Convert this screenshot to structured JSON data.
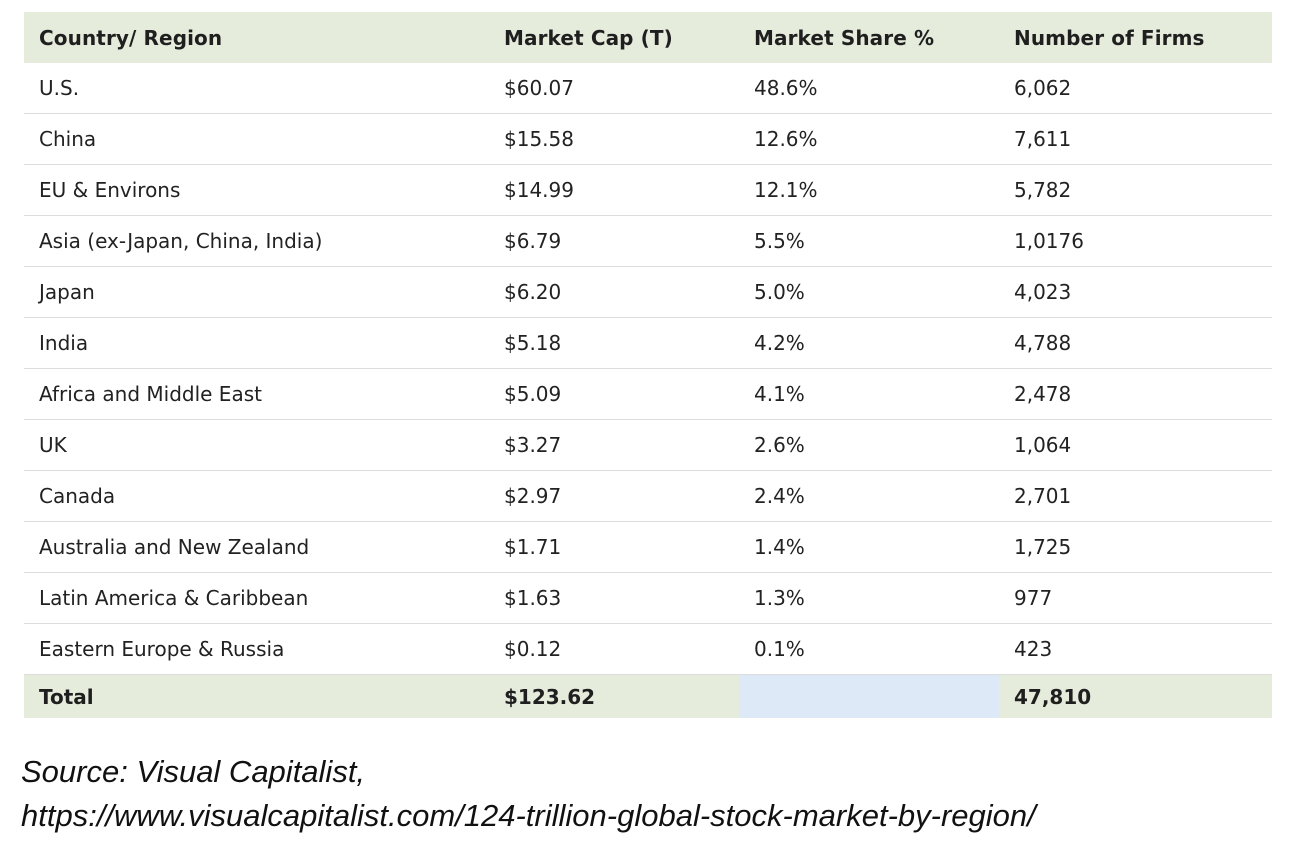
{
  "table": {
    "headers": [
      "Country/ Region",
      "Market Cap (T)",
      "Market Share %",
      "Number of Firms"
    ],
    "rows": [
      [
        "U.S.",
        "$60.07",
        "48.6%",
        "6,062"
      ],
      [
        "China",
        "$15.58",
        "12.6%",
        "7,611"
      ],
      [
        "EU & Environs",
        "$14.99",
        "12.1%",
        "5,782"
      ],
      [
        "Asia (ex-Japan, China, India)",
        "$6.79",
        "5.5%",
        "1,0176"
      ],
      [
        "Japan",
        "$6.20",
        "5.0%",
        "4,023"
      ],
      [
        "India",
        "$5.18",
        "4.2%",
        "4,788"
      ],
      [
        "Africa and Middle East",
        "$5.09",
        "4.1%",
        "2,478"
      ],
      [
        "UK",
        "$3.27",
        "2.6%",
        "1,064"
      ],
      [
        "Canada",
        "$2.97",
        "2.4%",
        "2,701"
      ],
      [
        "Australia and New Zealand",
        "$1.71",
        "1.4%",
        "1,725"
      ],
      [
        "Latin America & Caribbean",
        "$1.63",
        "1.3%",
        "977"
      ],
      [
        "Eastern Europe & Russia",
        "$0.12",
        "0.1%",
        "423"
      ]
    ],
    "total": {
      "label": "Total",
      "market_cap": "$123.62",
      "market_share": "",
      "firms": "47,810"
    }
  },
  "source": {
    "line1": "Source: Visual Capitalist,",
    "line2": "https://www.visualcapitalist.com/124-trillion-global-stock-market-by-region/"
  },
  "colors": {
    "header_bg": "#e5ecdc",
    "total_blank_cell_bg": "#dde9f6",
    "row_divider": "#dcdcdc"
  }
}
